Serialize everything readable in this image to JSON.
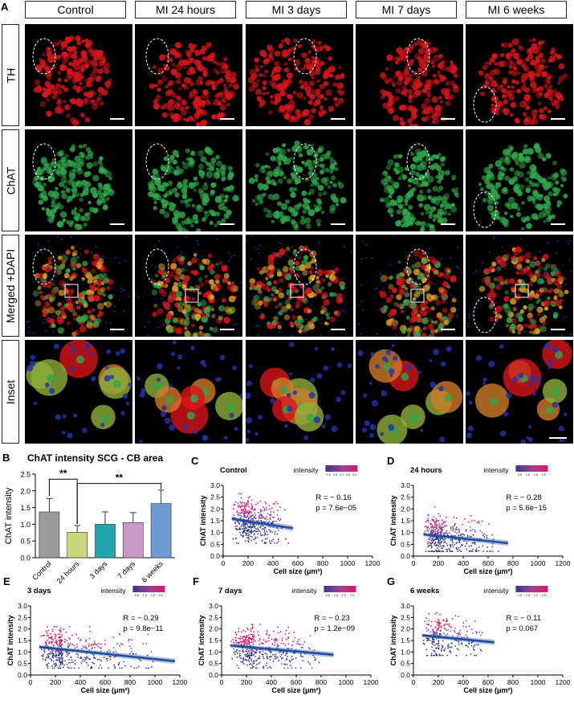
{
  "figure": {
    "panel_letters": [
      "A",
      "B",
      "C",
      "D",
      "E",
      "F",
      "G"
    ],
    "columns": [
      "Control",
      "MI 24 hours",
      "MI 3 days",
      "MI 7 days",
      "MI 6 weeks"
    ],
    "rows": [
      "TH",
      "ChAT",
      "Merged +DAPI",
      "Inset"
    ]
  },
  "colors": {
    "th_red": "#d8151c",
    "chat_green": "#2fa84a",
    "dapi_blue": "#2233aa",
    "regression_line": "#1f4e9a",
    "scatter_low": "#34388f",
    "scatter_high": "#e0106a"
  },
  "chart_data": [
    {
      "id": "B",
      "type": "bar",
      "title": "ChAT intensity SCG - CB area",
      "ylabel": "ChAT intensity",
      "xlabel": "",
      "ylim": [
        0,
        2.5
      ],
      "yticks": [
        0.0,
        0.5,
        1.0,
        1.5,
        2.0,
        2.5
      ],
      "categories": [
        "Control",
        "24 hours",
        "3 days",
        "7 days",
        "6 weeks"
      ],
      "values": [
        1.37,
        0.76,
        1.0,
        1.05,
        1.62
      ],
      "errors": [
        0.4,
        0.2,
        0.37,
        0.3,
        0.4
      ],
      "colors": [
        "#9b9b9b",
        "#c9d67a",
        "#1fa6b0",
        "#c79ac7",
        "#6b9bd1"
      ],
      "significance": [
        {
          "from": 0,
          "to": 1,
          "label": "**"
        },
        {
          "from": 1,
          "to": 4,
          "label": "**"
        }
      ],
      "grid": false
    },
    {
      "id": "C",
      "type": "scatter",
      "title": "Control",
      "xlabel": "Cell size (μm²)",
      "ylabel": "ChAT intensity",
      "xlim": [
        0,
        1200
      ],
      "ylim": [
        0,
        3.0
      ],
      "xticks": [
        0,
        200,
        400,
        600,
        800,
        1000,
        1200
      ],
      "yticks": [
        0.0,
        0.5,
        1.0,
        1.5,
        2.0,
        2.5,
        3.0
      ],
      "stats": {
        "R": "R = − 0.16",
        "p": "p = 7.6e−05"
      },
      "legend": {
        "title": "intensity",
        "ticks": [
          "1.0",
          "1.5",
          "2.0",
          "2.5",
          "3.0"
        ]
      },
      "fit": {
        "x": [
          70,
          560
        ],
        "y": [
          1.58,
          1.18
        ]
      },
      "cloud": {
        "x_range": [
          70,
          560
        ],
        "x_mode": 210,
        "y_range": [
          0.55,
          2.9
        ],
        "n": 420
      }
    },
    {
      "id": "D",
      "type": "scatter",
      "title": "24 hours",
      "xlabel": "Cell size (μm²)",
      "ylabel": "ChAT intensity",
      "xlim": [
        0,
        1200
      ],
      "ylim": [
        0,
        3.0
      ],
      "xticks": [
        0,
        200,
        400,
        600,
        800,
        1000,
        1200
      ],
      "yticks": [
        0.0,
        0.5,
        1.0,
        1.5,
        2.0,
        2.5,
        3.0
      ],
      "stats": {
        "R": "R = − 0.28",
        "p": "p = 5.6e−15"
      },
      "legend": {
        "title": "intensity",
        "ticks": [
          "0.5",
          "1.0",
          "1.5",
          "2.0"
        ]
      },
      "fit": {
        "x": [
          80,
          760
        ],
        "y": [
          0.92,
          0.55
        ]
      },
      "cloud": {
        "x_range": [
          80,
          760
        ],
        "x_mode": 230,
        "y_range": [
          0.2,
          2.1
        ],
        "n": 420
      }
    },
    {
      "id": "E",
      "type": "scatter",
      "title": "3 days",
      "xlabel": "Cell size (μm²)",
      "ylabel": "ChAT intensity",
      "xlim": [
        0,
        1200
      ],
      "ylim": [
        0,
        3.0
      ],
      "xticks": [
        0,
        200,
        400,
        600,
        800,
        1000,
        1200
      ],
      "yticks": [
        0.0,
        0.5,
        1.0,
        1.5,
        2.0,
        2.5,
        3.0
      ],
      "stats": {
        "R": "R = − 0.29",
        "p": "p = 9.8e−11"
      },
      "legend": {
        "title": "intensity",
        "ticks": [
          "0.5",
          "1.0",
          "1.5",
          "2.0"
        ]
      },
      "fit": {
        "x": [
          70,
          1160
        ],
        "y": [
          1.22,
          0.6
        ]
      },
      "cloud": {
        "x_range": [
          70,
          1160
        ],
        "x_mode": 260,
        "y_range": [
          0.3,
          2.1
        ],
        "n": 420
      }
    },
    {
      "id": "F",
      "type": "scatter",
      "title": "7 days",
      "xlabel": "Cell size (μm²)",
      "ylabel": "ChAT intensity",
      "xlim": [
        0,
        1200
      ],
      "ylim": [
        0,
        3.0
      ],
      "xticks": [
        0,
        200,
        400,
        600,
        800,
        1000,
        1200
      ],
      "yticks": [
        0.0,
        0.5,
        1.0,
        1.5,
        2.0,
        2.5,
        3.0
      ],
      "stats": {
        "R": "R = − 0.23",
        "p": "p = 1.2e−09"
      },
      "legend": {
        "title": "intensity",
        "ticks": [
          "0.5",
          "1.0",
          "1.5",
          "2.0"
        ]
      },
      "fit": {
        "x": [
          70,
          900
        ],
        "y": [
          1.28,
          0.88
        ]
      },
      "cloud": {
        "x_range": [
          70,
          900
        ],
        "x_mode": 260,
        "y_range": [
          0.3,
          2.2
        ],
        "n": 420
      }
    },
    {
      "id": "G",
      "type": "scatter",
      "title": "6 weeks",
      "xlabel": "Cell size (μm²)",
      "ylabel": "ChAT intensity",
      "xlim": [
        0,
        1200
      ],
      "ylim": [
        0,
        3.0
      ],
      "xticks": [
        0,
        200,
        400,
        600,
        800,
        1000,
        1200
      ],
      "yticks": [
        0.0,
        0.5,
        1.0,
        1.5,
        2.0,
        2.5,
        3.0
      ],
      "stats": {
        "R": "R = − 0.11",
        "p": "p = 0.067"
      },
      "legend": {
        "title": "intensity",
        "ticks": [
          "1.0",
          "1.5",
          "2.0",
          "2.5"
        ]
      },
      "fit": {
        "x": [
          70,
          650
        ],
        "y": [
          1.72,
          1.42
        ]
      },
      "cloud": {
        "x_range": [
          70,
          650
        ],
        "x_mode": 220,
        "y_range": [
          0.85,
          2.95
        ],
        "n": 260
      }
    }
  ]
}
